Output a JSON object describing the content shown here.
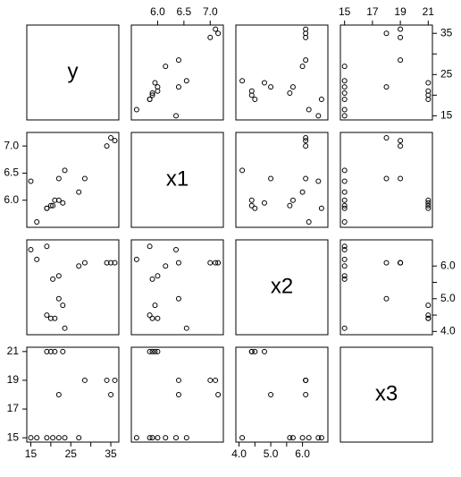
{
  "chart_data": {
    "type": "scatter",
    "variables": [
      {
        "name": "y",
        "values": [
          15,
          16.5,
          19,
          20.5,
          22,
          23.5,
          27,
          22,
          35,
          28.5,
          34,
          36,
          19,
          20,
          21,
          23
        ],
        "lim": [
          14,
          37
        ],
        "ticks": [
          15,
          20,
          25,
          30,
          35
        ]
      },
      {
        "name": "x1",
        "values": [
          6.35,
          5.6,
          5.85,
          5.9,
          6.0,
          6.55,
          6.15,
          6.4,
          7.15,
          6.4,
          7.0,
          7.1,
          5.85,
          5.9,
          6.0,
          5.95
        ],
        "lim": [
          5.5,
          7.25
        ],
        "ticks": [
          {
            "value": 6,
            "label": "6.0"
          },
          {
            "value": 6.5,
            "label": "6.5"
          },
          {
            "value": 7,
            "label": "7.0"
          }
        ]
      },
      {
        "name": "x2",
        "values": [
          6.5,
          6.2,
          6.6,
          5.6,
          5.7,
          4.1,
          6.0,
          5.0,
          6.1,
          6.1,
          6.1,
          6.1,
          4.5,
          4.4,
          4.4,
          4.8
        ],
        "lim": [
          3.9,
          6.8
        ],
        "ticks": [
          {
            "value": 4,
            "label": "4.0"
          },
          4.5,
          {
            "value": 5,
            "label": "5.0"
          },
          5.5,
          {
            "value": 6,
            "label": "6.0"
          }
        ]
      },
      {
        "name": "x3",
        "values": [
          15,
          15,
          15,
          15,
          15,
          15,
          15,
          18,
          18,
          19,
          19,
          19,
          21,
          21,
          21,
          21
        ],
        "lim": [
          14.7,
          21.3
        ],
        "ticks": [
          15,
          17,
          19,
          21
        ]
      }
    ]
  }
}
